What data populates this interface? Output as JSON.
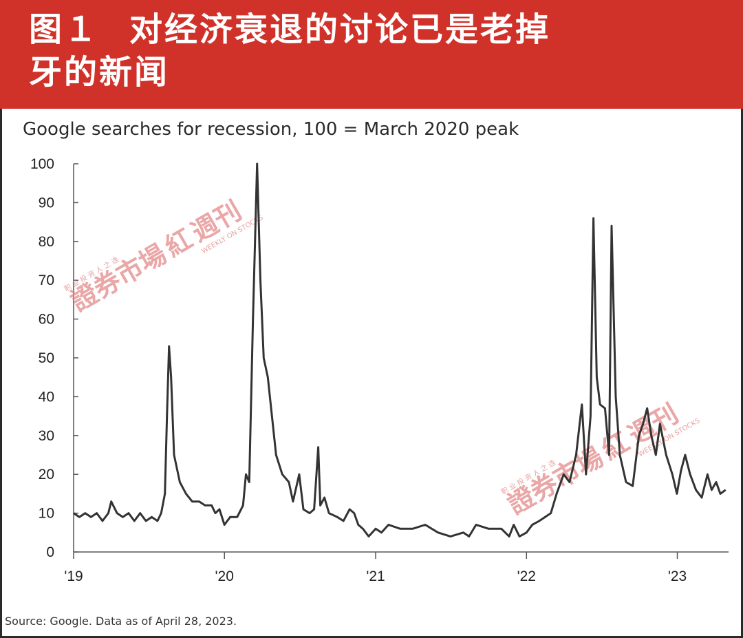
{
  "header": {
    "figure_no": "图１",
    "title_line1": "对经济衰退的讨论已是老掉",
    "title_line2": "牙的新闻"
  },
  "watermark": {
    "cn_name": "證券市場",
    "logo_glyph": "紅",
    "cn_weekly": "週刊",
    "slogan": "职 业 投 资 人 之 选",
    "en_name": "WEEKLY ON STOCKS"
  },
  "chart_data": {
    "type": "line",
    "title": "Google searches for recession, 100 = March 2020 peak",
    "source": "Source: Google. Data as of April 28, 2023.",
    "ylim": [
      0,
      100
    ],
    "yticks": [
      0,
      10,
      20,
      30,
      40,
      50,
      60,
      70,
      80,
      90,
      100
    ],
    "xlim": [
      "2019-01-01",
      "2023-05-05"
    ],
    "xticks": [
      {
        "date": "2019-01-01",
        "label": "'19"
      },
      {
        "date": "2020-01-01",
        "label": "'20"
      },
      {
        "date": "2021-01-01",
        "label": "'21"
      },
      {
        "date": "2022-01-01",
        "label": "'22"
      },
      {
        "date": "2023-01-01",
        "label": "'23"
      }
    ],
    "grid": false,
    "color": "#333333",
    "series": [
      {
        "points": [
          [
            "2019-01-01",
            10
          ],
          [
            "2019-01-15",
            9
          ],
          [
            "2019-01-29",
            10
          ],
          [
            "2019-02-12",
            9
          ],
          [
            "2019-02-26",
            10
          ],
          [
            "2019-03-12",
            8
          ],
          [
            "2019-03-26",
            10
          ],
          [
            "2019-04-02",
            13
          ],
          [
            "2019-04-16",
            10
          ],
          [
            "2019-04-30",
            9
          ],
          [
            "2019-05-14",
            10
          ],
          [
            "2019-05-28",
            8
          ],
          [
            "2019-06-11",
            10
          ],
          [
            "2019-06-25",
            8
          ],
          [
            "2019-07-09",
            9
          ],
          [
            "2019-07-23",
            8
          ],
          [
            "2019-08-01",
            10
          ],
          [
            "2019-08-10",
            15
          ],
          [
            "2019-08-15",
            35
          ],
          [
            "2019-08-20",
            53
          ],
          [
            "2019-08-25",
            45
          ],
          [
            "2019-09-01",
            25
          ],
          [
            "2019-09-15",
            18
          ],
          [
            "2019-09-30",
            15
          ],
          [
            "2019-10-15",
            13
          ],
          [
            "2019-11-01",
            13
          ],
          [
            "2019-11-15",
            12
          ],
          [
            "2019-12-01",
            12
          ],
          [
            "2019-12-10",
            10
          ],
          [
            "2019-12-20",
            11
          ],
          [
            "2020-01-01",
            7
          ],
          [
            "2020-01-15",
            9
          ],
          [
            "2020-02-01",
            9
          ],
          [
            "2020-02-15",
            12
          ],
          [
            "2020-02-22",
            20
          ],
          [
            "2020-03-01",
            18
          ],
          [
            "2020-03-10",
            60
          ],
          [
            "2020-03-20",
            100
          ],
          [
            "2020-03-28",
            70
          ],
          [
            "2020-04-05",
            50
          ],
          [
            "2020-04-15",
            45
          ],
          [
            "2020-04-25",
            35
          ],
          [
            "2020-05-05",
            25
          ],
          [
            "2020-05-20",
            20
          ],
          [
            "2020-06-05",
            18
          ],
          [
            "2020-06-15",
            13
          ],
          [
            "2020-06-30",
            20
          ],
          [
            "2020-07-10",
            11
          ],
          [
            "2020-07-25",
            10
          ],
          [
            "2020-08-05",
            11
          ],
          [
            "2020-08-15",
            27
          ],
          [
            "2020-08-20",
            12
          ],
          [
            "2020-08-30",
            14
          ],
          [
            "2020-09-10",
            10
          ],
          [
            "2020-09-30",
            9
          ],
          [
            "2020-10-15",
            8
          ],
          [
            "2020-10-30",
            11
          ],
          [
            "2020-11-10",
            10
          ],
          [
            "2020-11-20",
            7
          ],
          [
            "2020-12-01",
            6
          ],
          [
            "2020-12-15",
            4
          ],
          [
            "2021-01-01",
            6
          ],
          [
            "2021-01-15",
            5
          ],
          [
            "2021-02-01",
            7
          ],
          [
            "2021-03-01",
            6
          ],
          [
            "2021-04-01",
            6
          ],
          [
            "2021-05-01",
            7
          ],
          [
            "2021-06-01",
            5
          ],
          [
            "2021-07-01",
            4
          ],
          [
            "2021-08-01",
            5
          ],
          [
            "2021-08-15",
            4
          ],
          [
            "2021-09-01",
            7
          ],
          [
            "2021-10-01",
            6
          ],
          [
            "2021-11-01",
            6
          ],
          [
            "2021-11-20",
            4
          ],
          [
            "2021-12-01",
            7
          ],
          [
            "2021-12-15",
            4
          ],
          [
            "2022-01-01",
            5
          ],
          [
            "2022-01-15",
            7
          ],
          [
            "2022-02-01",
            8
          ],
          [
            "2022-03-01",
            10
          ],
          [
            "2022-03-15",
            15
          ],
          [
            "2022-04-01",
            20
          ],
          [
            "2022-04-15",
            18
          ],
          [
            "2022-05-01",
            25
          ],
          [
            "2022-05-15",
            38
          ],
          [
            "2022-05-25",
            20
          ],
          [
            "2022-06-05",
            35
          ],
          [
            "2022-06-12",
            86
          ],
          [
            "2022-06-20",
            45
          ],
          [
            "2022-06-28",
            38
          ],
          [
            "2022-07-10",
            37
          ],
          [
            "2022-07-20",
            25
          ],
          [
            "2022-07-26",
            84
          ],
          [
            "2022-08-05",
            40
          ],
          [
            "2022-08-15",
            25
          ],
          [
            "2022-08-30",
            18
          ],
          [
            "2022-09-15",
            17
          ],
          [
            "2022-09-30",
            30
          ],
          [
            "2022-10-10",
            33
          ],
          [
            "2022-10-20",
            37
          ],
          [
            "2022-10-30",
            30
          ],
          [
            "2022-11-10",
            25
          ],
          [
            "2022-11-20",
            33
          ],
          [
            "2022-12-05",
            25
          ],
          [
            "2022-12-20",
            20
          ],
          [
            "2022-12-31",
            15
          ],
          [
            "2023-01-10",
            21
          ],
          [
            "2023-01-20",
            25
          ],
          [
            "2023-02-01",
            20
          ],
          [
            "2023-02-15",
            16
          ],
          [
            "2023-03-01",
            14
          ],
          [
            "2023-03-15",
            20
          ],
          [
            "2023-03-25",
            16
          ],
          [
            "2023-04-05",
            18
          ],
          [
            "2023-04-15",
            15
          ],
          [
            "2023-04-28",
            16
          ]
        ]
      }
    ]
  }
}
